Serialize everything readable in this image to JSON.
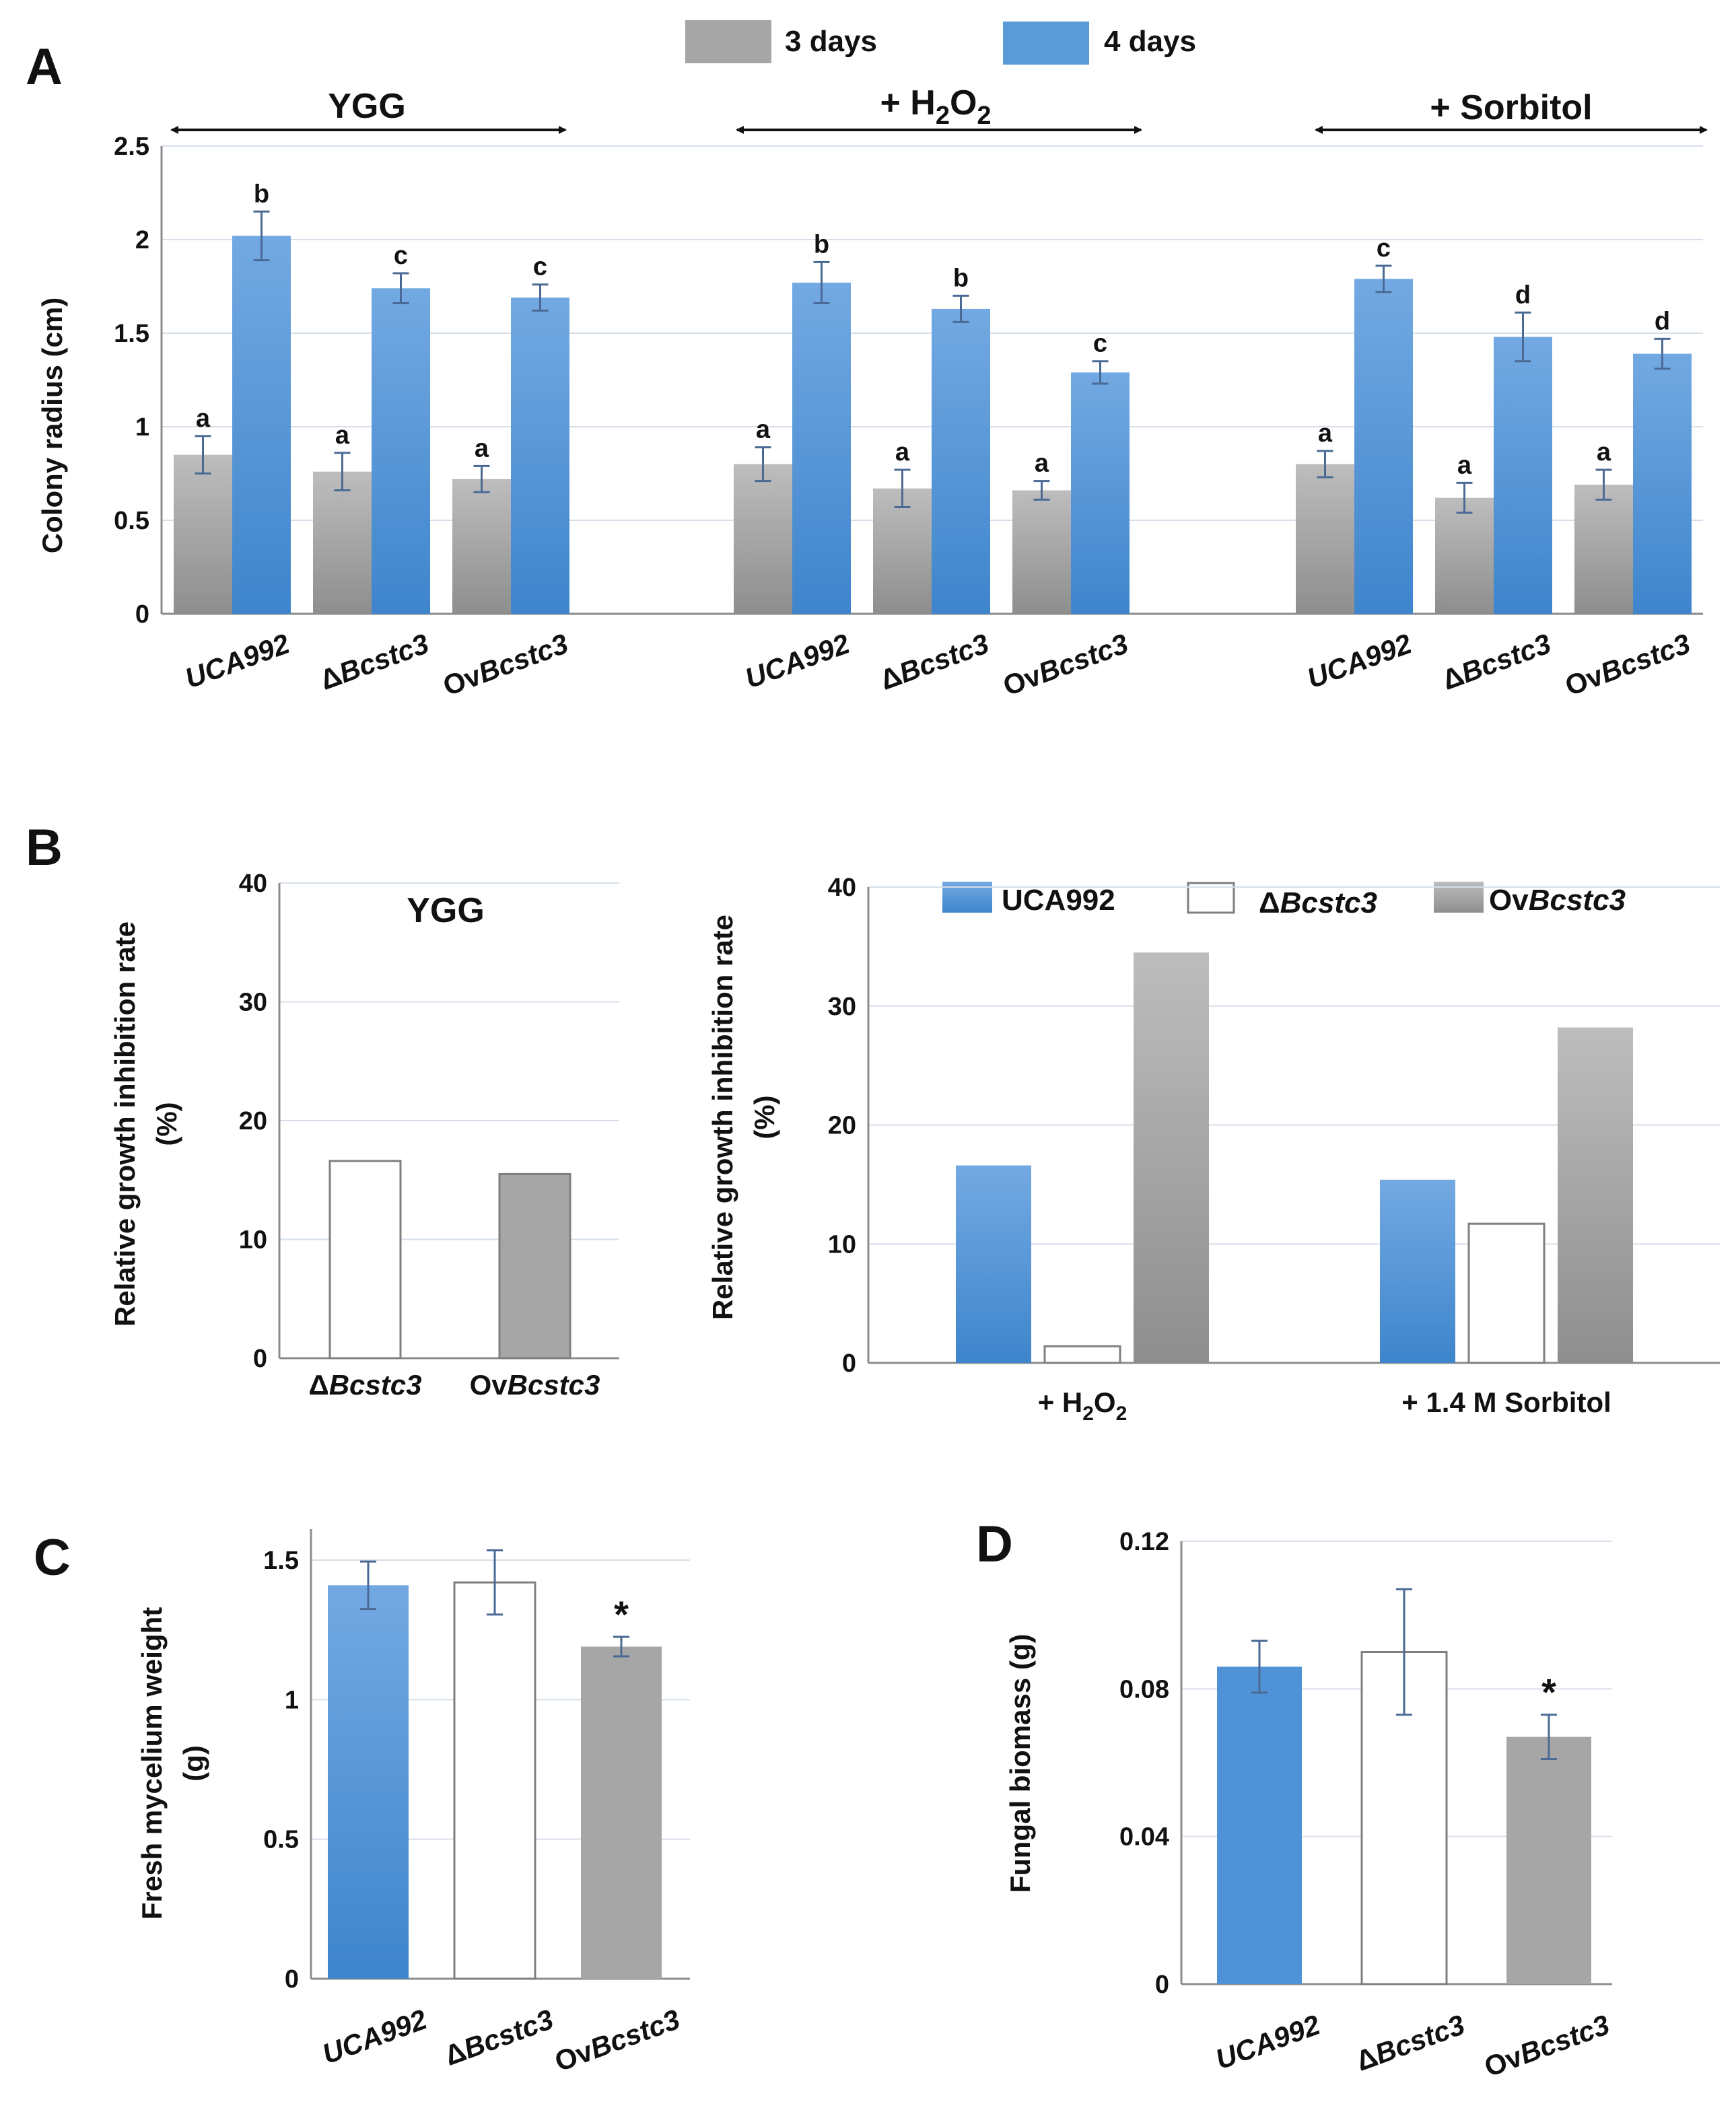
{
  "colors": {
    "blue_top": "#73a9e2",
    "blue_bottom": "#3e85cc",
    "gray_top": "#bdbdbd",
    "gray_bottom": "#8e8e8e",
    "gray_solid": "#a6a6a6",
    "white": "#ffffff"
  },
  "chart_data": [
    {
      "id": "A",
      "panel_label": "A",
      "type": "bar",
      "ylabel": "Colony radius (cm)",
      "ylim": [
        0,
        2.5
      ],
      "yticks": [
        "0",
        "0.5",
        "1",
        "1.5",
        "2",
        "2.5"
      ],
      "legend": [
        "3 days",
        "4 days"
      ],
      "groups": [
        {
          "label_main": "YGG",
          "label_sub": "",
          "label_tail": ""
        },
        {
          "label_main": "+ H",
          "label_sub": "2",
          "label_mid": "O",
          "label_sub2": "2"
        },
        {
          "label_main": "+ Sorbitol",
          "label_sub": "",
          "label_tail": ""
        }
      ],
      "categories": [
        {
          "pre": "",
          "it": "UCA992"
        },
        {
          "pre": "Δ",
          "it": "Bcstc3"
        },
        {
          "pre": "Ov",
          "it": "Bcstc3"
        },
        {
          "pre": "",
          "it": "UCA992"
        },
        {
          "pre": "Δ",
          "it": "Bcstc3"
        },
        {
          "pre": "Ov",
          "it": "Bcstc3"
        },
        {
          "pre": "",
          "it": "UCA992"
        },
        {
          "pre": "Δ",
          "it": "Bcstc3"
        },
        {
          "pre": "Ov",
          "it": "Bcstc3"
        }
      ],
      "series": [
        {
          "name": "3 days",
          "values": [
            0.85,
            0.76,
            0.72,
            0.8,
            0.67,
            0.66,
            0.8,
            0.62,
            0.69
          ],
          "errors": [
            0.1,
            0.1,
            0.07,
            0.09,
            0.1,
            0.05,
            0.07,
            0.08,
            0.08
          ],
          "letters": [
            "a",
            "a",
            "a",
            "a",
            "a",
            "a",
            "a",
            "a",
            "a"
          ]
        },
        {
          "name": "4 days",
          "values": [
            2.02,
            1.74,
            1.69,
            1.77,
            1.63,
            1.29,
            1.79,
            1.48,
            1.39
          ],
          "errors": [
            0.13,
            0.08,
            0.07,
            0.11,
            0.07,
            0.06,
            0.07,
            0.13,
            0.08
          ],
          "letters": [
            "b",
            "c",
            "c",
            "b",
            "b",
            "c",
            "c",
            "d",
            "d"
          ]
        }
      ]
    },
    {
      "id": "B1",
      "panel_label": "B",
      "type": "bar",
      "title": "YGG",
      "ylabel_line1": "Relative growth inhibition rate",
      "ylabel_line2": "(%)",
      "ylim": [
        0,
        40
      ],
      "yticks": [
        "0",
        "10",
        "20",
        "30",
        "40"
      ],
      "categories": [
        {
          "pre": "Δ",
          "it": "Bcstc3"
        },
        {
          "pre": "Ov",
          "it": "Bcstc3"
        }
      ],
      "values": [
        16.6,
        15.5
      ]
    },
    {
      "id": "B2",
      "type": "bar",
      "ylabel_line1": "Relative growth  inhibition rate",
      "ylabel_line2": "(%)",
      "ylim": [
        0,
        40
      ],
      "yticks": [
        "0",
        "10",
        "20",
        "30",
        "40"
      ],
      "legend": [
        {
          "pre": "UCA992",
          "it": ""
        },
        {
          "pre": "Δ",
          "it": "Bcstc3"
        },
        {
          "pre": "Ov",
          "it": "Bcstc3"
        }
      ],
      "categories": [
        {
          "main": "+ H",
          "sub": "2",
          "mid": "O",
          "sub2": "2"
        },
        {
          "main": "+ 1.4 M Sorbitol",
          "sub": "",
          "mid": "",
          "sub2": ""
        }
      ],
      "series": [
        {
          "name": "UCA992",
          "values": [
            16.6,
            15.4
          ]
        },
        {
          "name": "ΔBcstc3",
          "values": [
            1.4,
            11.7
          ]
        },
        {
          "name": "OvBcstc3",
          "values": [
            34.5,
            28.2
          ]
        }
      ]
    },
    {
      "id": "C",
      "panel_label": "C",
      "type": "bar",
      "ylabel_line1": "Fresh mycelium weight",
      "ylabel_line2": "(g)",
      "ylim": [
        0,
        1.6
      ],
      "yticks": [
        "0",
        "0.5",
        "1",
        "1.5"
      ],
      "ytick_values": [
        0,
        0.5,
        1,
        1.5
      ],
      "categories": [
        {
          "pre": "",
          "it": "UCA992"
        },
        {
          "pre": "Δ",
          "it": "Bcstc3"
        },
        {
          "pre": "Ov",
          "it": "Bcstc3"
        }
      ],
      "values": [
        1.41,
        1.42,
        1.19
      ],
      "errors": [
        0.085,
        0.115,
        0.035
      ],
      "annotations": [
        "",
        "",
        "*"
      ]
    },
    {
      "id": "D",
      "panel_label": "D",
      "type": "bar",
      "ylabel": "Fungal biomass (g)",
      "ylim": [
        0,
        0.12
      ],
      "yticks": [
        "0",
        "0.04",
        "0.08",
        "0.12"
      ],
      "ytick_values": [
        0,
        0.04,
        0.08,
        0.12
      ],
      "categories": [
        {
          "pre": "",
          "it": "UCA992"
        },
        {
          "pre": "Δ",
          "it": "Bcstc3"
        },
        {
          "pre": "Ov",
          "it": "Bcstc3"
        }
      ],
      "values": [
        0.086,
        0.09,
        0.067
      ],
      "errors": [
        0.007,
        0.017,
        0.006
      ],
      "annotations": [
        "",
        "",
        "*"
      ]
    }
  ]
}
